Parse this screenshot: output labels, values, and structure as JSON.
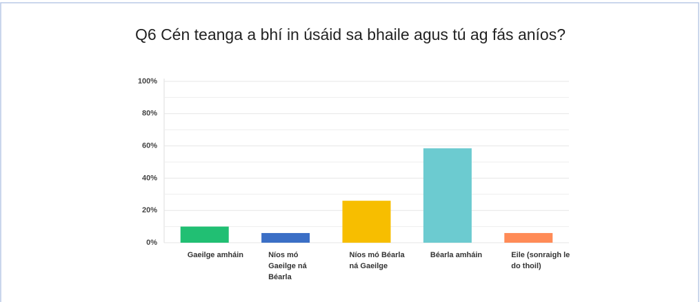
{
  "chart_data": {
    "type": "bar",
    "title": "Q6 Cén teanga a bhí in úsáid sa bhaile agus tú ag fás aníos?",
    "categories": [
      "Gaeilge amháin",
      "Níos mó Gaeilge ná Béarla",
      "Níos mó Béarla ná Gaeilge",
      "Béarla amháin",
      "Eile (sonraigh le do thoil)"
    ],
    "series": [
      {
        "name": null,
        "colors": [
          "#21bf73",
          "#3b6fc6",
          "#f7be00",
          "#6ccbd0",
          "#ff8b57"
        ],
        "values": [
          10,
          6,
          26,
          58.5,
          6
        ]
      }
    ],
    "ylim": [
      0,
      100
    ],
    "yticks": [
      {
        "value": 0,
        "label": "0%"
      },
      {
        "value": 20,
        "label": "20%"
      },
      {
        "value": 40,
        "label": "40%"
      },
      {
        "value": 60,
        "label": "60%"
      },
      {
        "value": 80,
        "label": "80%"
      },
      {
        "value": 100,
        "label": "100%"
      }
    ],
    "minor_grid": [
      10,
      30,
      50,
      70,
      90
    ],
    "grid": true
  }
}
